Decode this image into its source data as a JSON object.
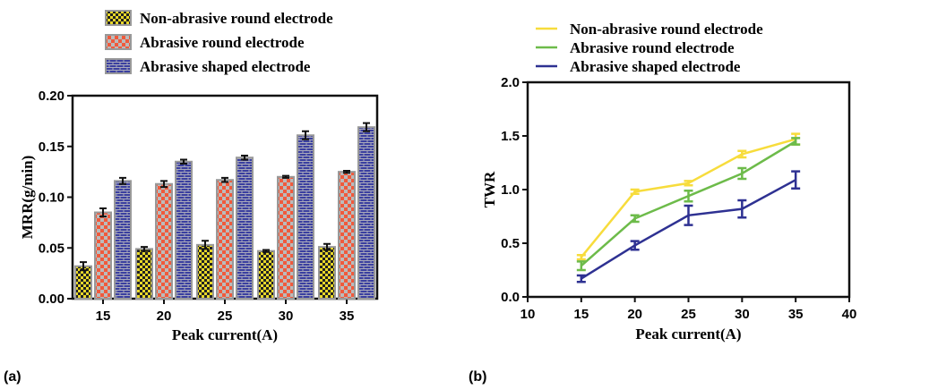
{
  "chart_data": [
    {
      "type": "bar",
      "panel_label": "(a)",
      "title": "",
      "xlabel": "Peak current(A)",
      "ylabel": "MRR(g/min)",
      "categories": [
        "15",
        "20",
        "25",
        "30",
        "35"
      ],
      "ylim": [
        0,
        0.2
      ],
      "yticks": [
        "0.00",
        "0.05",
        "0.10",
        "0.15",
        "0.20"
      ],
      "legend_position": "top",
      "series": [
        {
          "name": "Non-abrasive round electrode",
          "color": "#e8d82a",
          "values": [
            0.032,
            0.049,
            0.053,
            0.047,
            0.051
          ],
          "errors": [
            0.004,
            0.002,
            0.004,
            0.001,
            0.003
          ]
        },
        {
          "name": "Abrasive round electrode",
          "color": "#f05a3c",
          "values": [
            0.085,
            0.113,
            0.117,
            0.12,
            0.125
          ],
          "errors": [
            0.004,
            0.003,
            0.002,
            0.001,
            0.001
          ]
        },
        {
          "name": "Abrasive shaped electrode",
          "color": "#3a3fa0",
          "values": [
            0.116,
            0.135,
            0.139,
            0.161,
            0.169
          ],
          "errors": [
            0.003,
            0.002,
            0.002,
            0.004,
            0.004
          ]
        }
      ]
    },
    {
      "type": "line",
      "panel_label": "(b)",
      "title": "",
      "xlabel": "Peak current(A)",
      "ylabel": "TWR",
      "x": [
        15,
        20,
        25,
        30,
        35
      ],
      "xlim": [
        10,
        40
      ],
      "xticks": [
        "10",
        "15",
        "20",
        "25",
        "30",
        "35",
        "40"
      ],
      "ylim": [
        0,
        2.0
      ],
      "yticks": [
        "0.0",
        "0.5",
        "1.0",
        "1.5",
        "2.0"
      ],
      "legend_position": "top",
      "series": [
        {
          "name": "Non-abrasive round electrode",
          "color": "#f7dc3c",
          "values": [
            0.37,
            0.98,
            1.06,
            1.33,
            1.47
          ],
          "errors": [
            0.02,
            0.02,
            0.02,
            0.03,
            0.05
          ]
        },
        {
          "name": "Abrasive round electrode",
          "color": "#6dbb4a",
          "values": [
            0.29,
            0.73,
            0.94,
            1.15,
            1.45
          ],
          "errors": [
            0.04,
            0.03,
            0.05,
            0.05,
            0.03
          ]
        },
        {
          "name": "Abrasive shaped electrode",
          "color": "#2e3192",
          "values": [
            0.17,
            0.48,
            0.76,
            0.82,
            1.09
          ],
          "errors": [
            0.03,
            0.04,
            0.09,
            0.08,
            0.08
          ]
        }
      ]
    }
  ]
}
